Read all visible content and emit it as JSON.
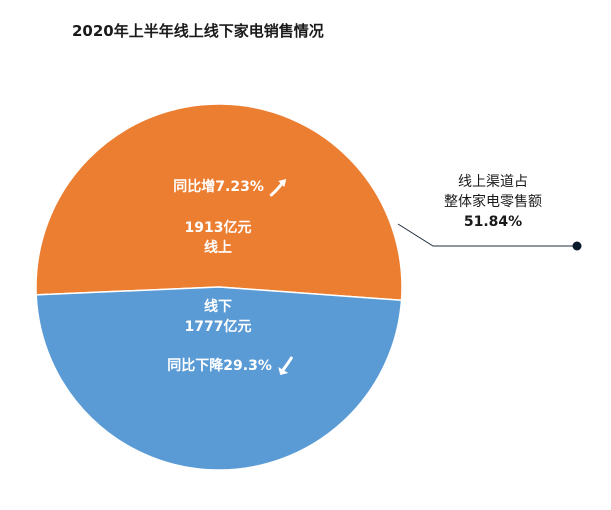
{
  "title": "2020年上半年线上线下家电销售情况",
  "chart_data": {
    "type": "pie",
    "title": "2020年上半年线上线下家电销售情况",
    "slices": [
      {
        "name": "线上",
        "value": 1913,
        "value_label": "1913亿元",
        "percent": 51.84,
        "yoy_label": "同比增7.23%",
        "trend": "up",
        "color": "#EC7E31"
      },
      {
        "name": "线下",
        "value": 1777,
        "value_label": "1777亿元",
        "percent": 48.16,
        "yoy_label": "同比下降29.3%",
        "trend": "down",
        "color": "#5B9BD5"
      }
    ],
    "annotation": {
      "line1": "线上渠道占",
      "line2": "整体家电零售额",
      "percent_label": "51.84%"
    }
  }
}
